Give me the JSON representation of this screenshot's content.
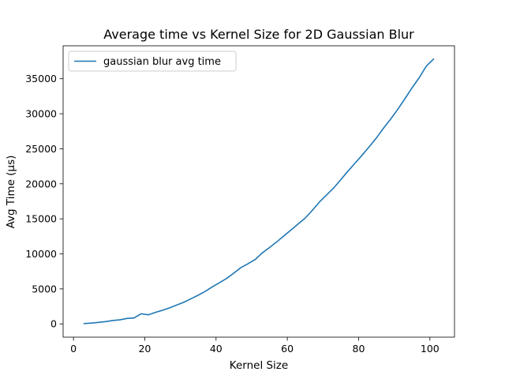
{
  "chart_data": {
    "type": "line",
    "title": "Average time vs Kernel Size for 2D Gaussian Blur",
    "xlabel": "Kernel Size",
    "ylabel": "Avg Time (µs)",
    "xlim": [
      -2.9,
      106.9
    ],
    "ylim": [
      -1890,
      39700
    ],
    "x_ticks": [
      0,
      20,
      40,
      60,
      80,
      100
    ],
    "y_ticks": [
      0,
      5000,
      10000,
      15000,
      20000,
      25000,
      30000,
      35000
    ],
    "grid": false,
    "legend_position": "top-left",
    "series": [
      {
        "name": "gaussian blur avg time",
        "color": "#1f77b4",
        "x": [
          3,
          5,
          7,
          9,
          11,
          13,
          15,
          17,
          19,
          21,
          23,
          25,
          27,
          29,
          31,
          33,
          35,
          37,
          39,
          41,
          43,
          45,
          47,
          49,
          51,
          53,
          55,
          57,
          59,
          61,
          63,
          65,
          67,
          69,
          71,
          73,
          75,
          77,
          79,
          81,
          83,
          85,
          87,
          89,
          91,
          93,
          95,
          97,
          99,
          101
        ],
        "values": [
          50,
          120,
          220,
          330,
          480,
          580,
          780,
          850,
          1450,
          1300,
          1650,
          1950,
          2300,
          2700,
          3100,
          3600,
          4100,
          4650,
          5300,
          5900,
          6500,
          7250,
          8050,
          8600,
          9200,
          10150,
          10900,
          11700,
          12550,
          13400,
          14250,
          15100,
          16200,
          17400,
          18400,
          19400,
          20600,
          21800,
          22950,
          24100,
          25300,
          26550,
          27950,
          29250,
          30650,
          32150,
          33700,
          35150,
          36800,
          37800
        ]
      }
    ]
  }
}
